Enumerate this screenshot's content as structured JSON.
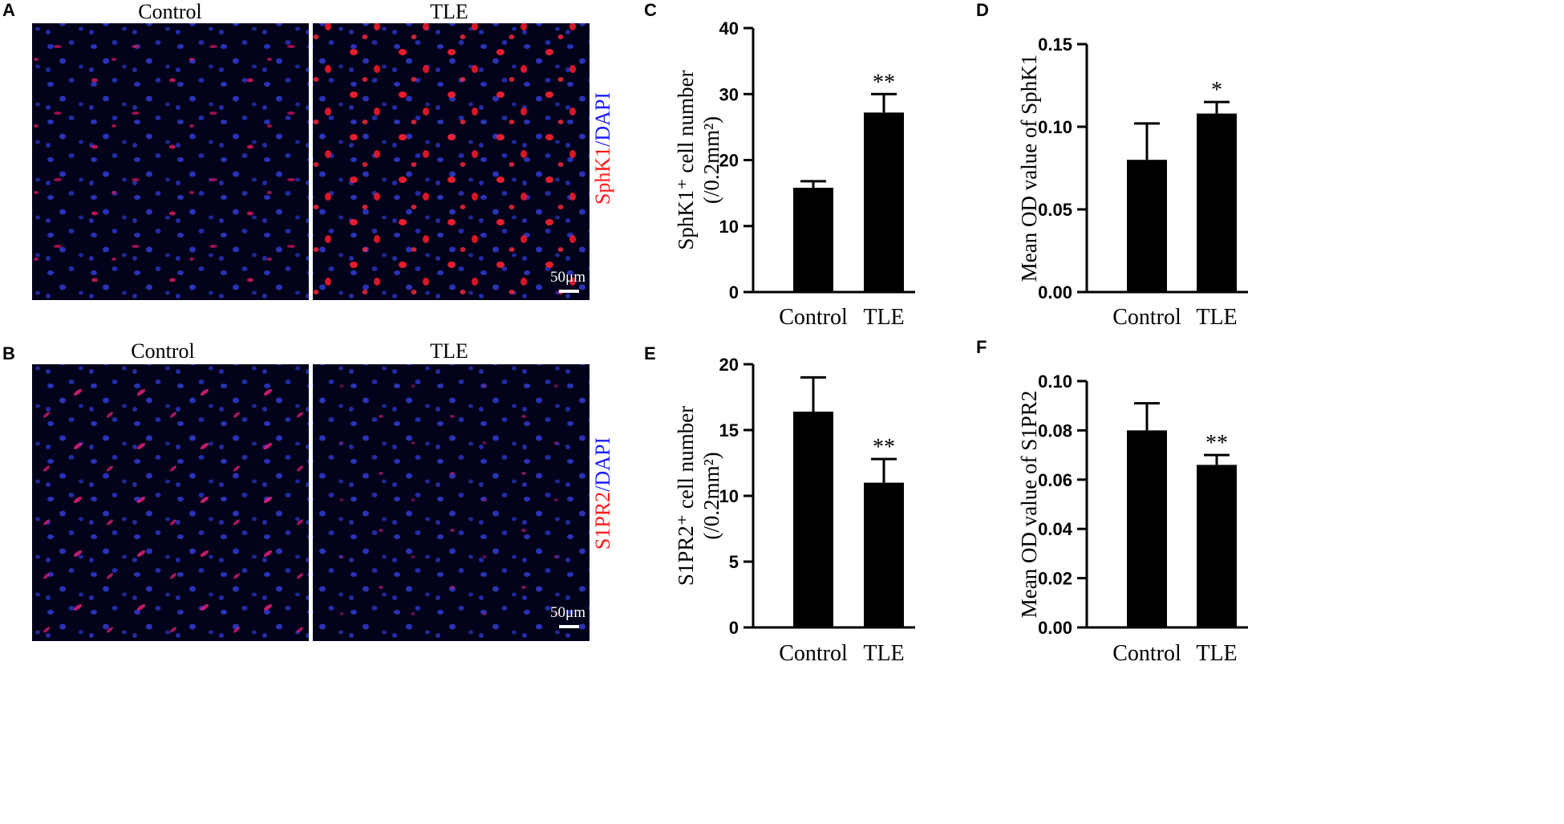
{
  "panel_letters": {
    "a": "A",
    "b": "B",
    "c": "C",
    "d": "D",
    "e": "E",
    "f": "F"
  },
  "micro": {
    "top": {
      "left_title": "Control",
      "right_title": "TLE",
      "stain_red": "SphK1",
      "stain_sep": "/",
      "stain_blue": "DAPI",
      "scale": "50μm"
    },
    "bottom": {
      "left_title": "Control",
      "right_title": "TLE",
      "stain_red": "S1PR2",
      "stain_sep": "/",
      "stain_blue": "DAPI",
      "scale": "50μm"
    },
    "colors": {
      "red": "#ff1a1a",
      "blue": "#1a1aff"
    }
  },
  "chart_data": [
    {
      "panel": "C",
      "type": "bar",
      "categories": [
        "Control",
        "TLE"
      ],
      "values": [
        15.8,
        27.2
      ],
      "errors": [
        1.0,
        2.8
      ],
      "significance": [
        "",
        "**"
      ],
      "ylabel_line1": "SphK1⁺ cell number",
      "ylabel_line2": "(/0.2mm²)",
      "ylim": [
        0,
        40
      ],
      "yticks": [
        0,
        10,
        20,
        30,
        40
      ],
      "tick_decimals": 0
    },
    {
      "panel": "D",
      "type": "bar",
      "categories": [
        "Control",
        "TLE"
      ],
      "values": [
        0.08,
        0.108
      ],
      "errors": [
        0.022,
        0.007
      ],
      "significance": [
        "",
        "*"
      ],
      "ylabel_line1": "Mean OD value of SphK1",
      "ylabel_line2": "",
      "ylim": [
        0,
        0.15
      ],
      "yticks": [
        0,
        0.05,
        0.1,
        0.15
      ],
      "tick_decimals": 2
    },
    {
      "panel": "E",
      "type": "bar",
      "categories": [
        "Control",
        "TLE"
      ],
      "values": [
        16.4,
        11.0
      ],
      "errors": [
        2.6,
        1.8
      ],
      "significance": [
        "",
        "**"
      ],
      "ylabel_line1": "S1PR2⁺ cell number",
      "ylabel_line2": "(/0.2mm²)",
      "ylim": [
        0,
        20
      ],
      "yticks": [
        0,
        5,
        10,
        15,
        20
      ],
      "tick_decimals": 0
    },
    {
      "panel": "F",
      "type": "bar",
      "categories": [
        "Control",
        "TLE"
      ],
      "values": [
        0.08,
        0.066
      ],
      "errors": [
        0.011,
        0.004
      ],
      "significance": [
        "",
        "**"
      ],
      "ylabel_line1": "Mean OD value of S1PR2",
      "ylabel_line2": "",
      "ylim": [
        0,
        0.1
      ],
      "yticks": [
        0,
        0.02,
        0.04,
        0.06,
        0.08,
        0.1
      ],
      "tick_decimals": 2
    }
  ]
}
